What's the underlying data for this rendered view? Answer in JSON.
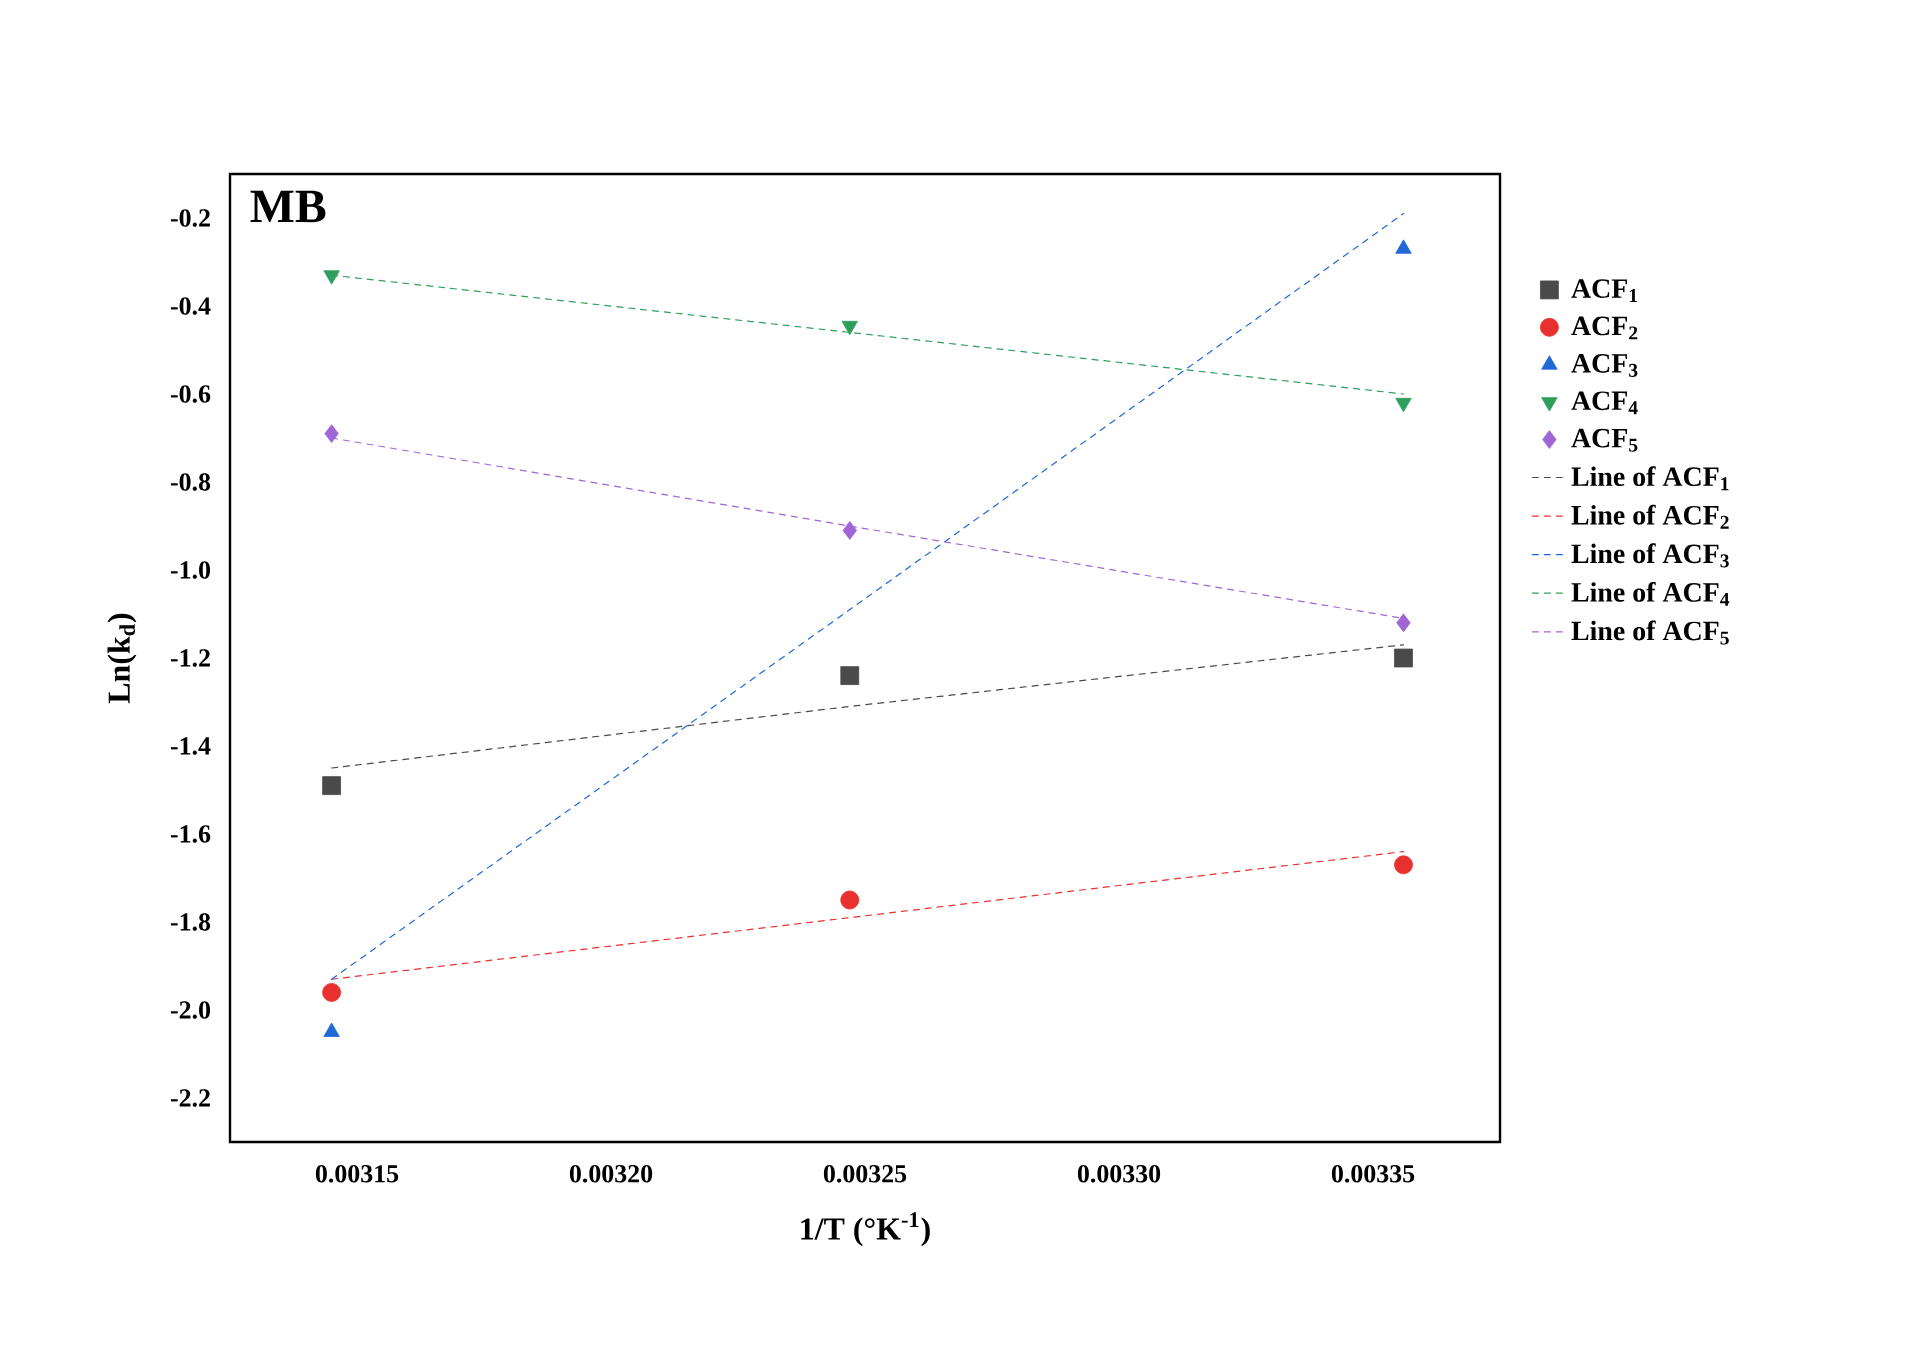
{
  "chart_data": {
    "type": "scatter",
    "xlabel": "1/T (°K$^{-1}$)",
    "ylabel": "Ln(k$_{d}$)",
    "annotations": [
      "MB"
    ],
    "x": [
      0.003145,
      0.003247,
      0.003356
    ],
    "series": [
      {
        "name": "ACF$_{1}$",
        "color": "#4a4a4a",
        "marker": "square",
        "values": [
          -1.49,
          -1.24,
          -1.2
        ]
      },
      {
        "name": "ACF$_{2}$",
        "color": "#e8302f",
        "marker": "circle",
        "values": [
          -1.96,
          -1.75,
          -1.67
        ]
      },
      {
        "name": "ACF$_{3}$",
        "color": "#1f68d6",
        "marker": "triangle",
        "values": [
          -2.05,
          null,
          -0.27
        ]
      },
      {
        "name": "ACF$_{4}$",
        "color": "#2e9e5b",
        "marker": "triangle-down",
        "values": [
          -0.33,
          -0.445,
          -0.62
        ]
      },
      {
        "name": "ACF$_{5}$",
        "color": "#a066d8",
        "marker": "diamond",
        "values": [
          -0.69,
          -0.91,
          -1.12
        ]
      },
      {
        "name": "Line of ACF$_{1}$",
        "type": "line",
        "line_style": "dashed",
        "color": "#4a4a4a",
        "values": [
          -1.45,
          -1.31,
          -1.17
        ]
      },
      {
        "name": "Line of ACF$_{2}$",
        "type": "line",
        "line_style": "dashed",
        "color": "#e8302f",
        "values": [
          -1.93,
          -1.79,
          -1.64
        ]
      },
      {
        "name": "Line of ACF$_{3}$",
        "type": "line",
        "line_style": "dashed",
        "color": "#1f68d6",
        "values": [
          -1.93,
          -1.09,
          -0.19
        ]
      },
      {
        "name": "Line of ACF$_{4}$",
        "type": "line",
        "line_style": "dashed",
        "color": "#2e9e5b",
        "values": [
          -0.33,
          -0.46,
          -0.6
        ]
      },
      {
        "name": "Line of ACF$_{5}$",
        "type": "line",
        "line_style": "dashed",
        "color": "#a066d8",
        "values": [
          -0.7,
          -0.9,
          -1.11
        ]
      }
    ],
    "xlim": [
      0.003125,
      0.003375
    ],
    "ylim": [
      -2.3,
      -0.1
    ],
    "xticks": [
      0.00315,
      {
        "value": 0.0032,
        "label": "0.00320"
      },
      0.00325,
      {
        "value": 0.0033,
        "label": "0.00330"
      },
      0.00335
    ],
    "yticks": [
      -2.2,
      {
        "value": -2.0,
        "label": "-2.0"
      },
      -1.8,
      -1.6,
      -1.4,
      -1.2,
      {
        "value": -1.0,
        "label": "-1.0"
      },
      -0.8,
      -0.6,
      -0.4,
      -0.2
    ],
    "legend": "right",
    "grid": false
  }
}
